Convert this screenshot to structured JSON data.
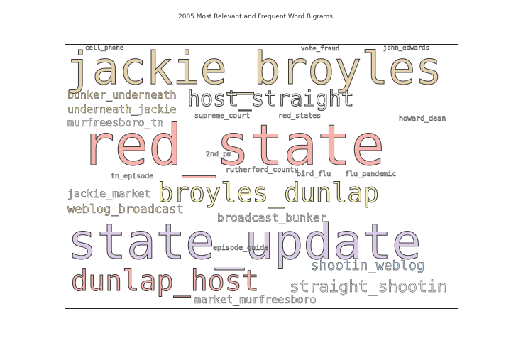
{
  "title": "2005 Most Relevant and Frequent Word Bigrams",
  "colors": {
    "tan": "#e4d2ad",
    "pink": "#f7b3ae",
    "cream": "#f6f0b8",
    "lavender": "#d9cbe6",
    "sky": "#bfd7e6",
    "gray": "#e9e9e9"
  },
  "words": {
    "jackie_broyles": "jackie_broyles",
    "red_state": "red_state",
    "state_update": "state_update",
    "broyles_dunlap": "broyles_dunlap",
    "dunlap_host": "dunlap_host",
    "host_straight": "host_straight",
    "straight_shootin": "straight_shootin",
    "shootin_weblog": "shootin_weblog",
    "weblog_broadcast": "weblog_broadcast",
    "broadcast_bunker": "broadcast_bunker",
    "bunker_underneath": "bunker_underneath",
    "underneath_jackie": "underneath_jackie",
    "murfreesboro_tn": "murfreesboro_tn",
    "jackie_market": "jackie_market",
    "market_murfreesboro": "market_murfreesboro",
    "tn_episode": "tn_episode",
    "bird_flu": "bird_flu",
    "flu_pandemic": "flu_pandemic",
    "2nd_pm": "2nd_pm",
    "rutherford_county": "rutherford_county",
    "episode_guide": "episode_guide",
    "supreme_court": "supreme_court",
    "red_states": "red_states",
    "cell_phone": "cell_phone",
    "vote_fraud": "vote_fraud",
    "john_edwards": "john_edwards",
    "howard_dean": "howard_dean"
  }
}
